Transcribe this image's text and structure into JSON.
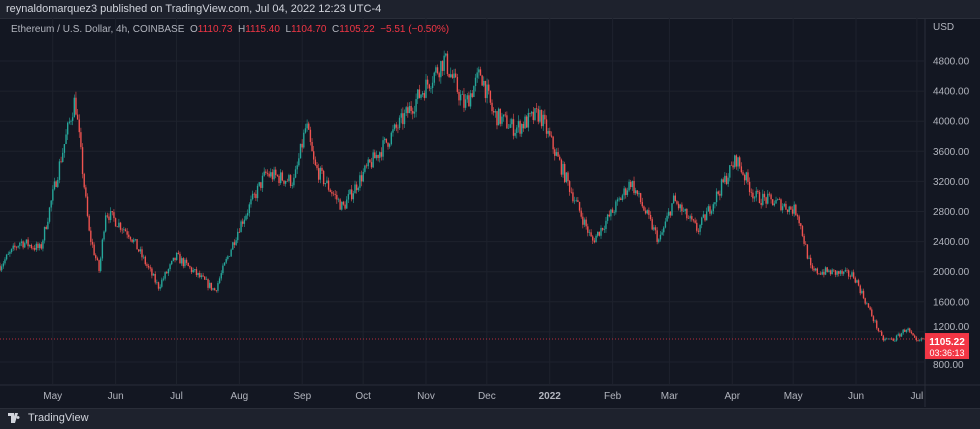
{
  "header": {
    "published": "reynaldomarquez3 published on TradingView.com, Jul 04, 2022 12:23 UTC-4"
  },
  "legend": {
    "symbol": "Ethereum / U.S. Dollar, 4h, COINBASE",
    "o_label": "O",
    "o": "1110.73",
    "h_label": "H",
    "h": "1115.40",
    "l_label": "L",
    "l": "1104.70",
    "c_label": "C",
    "c": "1105.22",
    "change": "−5.51 (−0.50%)"
  },
  "footer": {
    "brand": "TradingView"
  },
  "colors": {
    "up": "#26a69a",
    "down": "#ef5350",
    "bg": "#131722",
    "badge": "#f23645"
  },
  "chart_data": {
    "type": "candlestick",
    "currency_label": "USD",
    "ylim": [
      600,
      5050
    ],
    "y_ticks": [
      "800.00",
      "1200.00",
      "1600.00",
      "2000.00",
      "2400.00",
      "2800.00",
      "3200.00",
      "3600.00",
      "4000.00",
      "4400.00",
      "4800.00"
    ],
    "x_ticks": [
      {
        "label": "May",
        "date": "2021-05-01"
      },
      {
        "label": "Jun",
        "date": "2021-06-01"
      },
      {
        "label": "Jul",
        "date": "2021-07-01"
      },
      {
        "label": "Aug",
        "date": "2021-08-01"
      },
      {
        "label": "Sep",
        "date": "2021-09-01"
      },
      {
        "label": "Oct",
        "date": "2021-10-01"
      },
      {
        "label": "Nov",
        "date": "2021-11-01"
      },
      {
        "label": "Dec",
        "date": "2021-12-01"
      },
      {
        "label": "2022",
        "date": "2022-01-01"
      },
      {
        "label": "Feb",
        "date": "2022-02-01"
      },
      {
        "label": "Mar",
        "date": "2022-03-01"
      },
      {
        "label": "Apr",
        "date": "2022-04-01"
      },
      {
        "label": "May",
        "date": "2022-05-01"
      },
      {
        "label": "Jun",
        "date": "2022-06-01"
      },
      {
        "label": "Jul",
        "date": "2022-07-01"
      }
    ],
    "xlim": [
      "2021-04-05",
      "2022-07-05"
    ],
    "grid": true,
    "last_price": {
      "value": 1105.22,
      "label": "1105.22",
      "countdown": "03:36:13"
    },
    "approx_close_path": [
      [
        "2021-04-05",
        2080
      ],
      [
        "2021-04-15",
        2400
      ],
      [
        "2021-04-25",
        2300
      ],
      [
        "2021-05-05",
        3500
      ],
      [
        "2021-05-12",
        4300
      ],
      [
        "2021-05-19",
        2500
      ],
      [
        "2021-05-24",
        2000
      ],
      [
        "2021-05-27",
        2800
      ],
      [
        "2021-06-08",
        2500
      ],
      [
        "2021-06-22",
        1800
      ],
      [
        "2021-07-01",
        2200
      ],
      [
        "2021-07-20",
        1750
      ],
      [
        "2021-08-01",
        2600
      ],
      [
        "2021-08-14",
        3300
      ],
      [
        "2021-08-28",
        3200
      ],
      [
        "2021-09-03",
        3950
      ],
      [
        "2021-09-07",
        3400
      ],
      [
        "2021-09-21",
        2850
      ],
      [
        "2021-10-01",
        3300
      ],
      [
        "2021-10-20",
        4000
      ],
      [
        "2021-10-25",
        4200
      ],
      [
        "2021-11-10",
        4820
      ],
      [
        "2021-11-20",
        4200
      ],
      [
        "2021-11-28",
        4650
      ],
      [
        "2021-12-04",
        4100
      ],
      [
        "2021-12-15",
        3900
      ],
      [
        "2021-12-27",
        4100
      ],
      [
        "2022-01-05",
        3500
      ],
      [
        "2022-01-22",
        2400
      ],
      [
        "2022-02-01",
        2800
      ],
      [
        "2022-02-10",
        3200
      ],
      [
        "2022-02-24",
        2400
      ],
      [
        "2022-03-03",
        2950
      ],
      [
        "2022-03-15",
        2550
      ],
      [
        "2022-04-03",
        3500
      ],
      [
        "2022-04-12",
        3000
      ],
      [
        "2022-04-25",
        2900
      ],
      [
        "2022-05-03",
        2800
      ],
      [
        "2022-05-10",
        2000
      ],
      [
        "2022-05-18",
        2000
      ],
      [
        "2022-05-31",
        1950
      ],
      [
        "2022-06-14",
        1100
      ],
      [
        "2022-06-20",
        1100
      ],
      [
        "2022-06-26",
        1250
      ],
      [
        "2022-07-01",
        1050
      ],
      [
        "2022-07-04",
        1105
      ]
    ]
  }
}
